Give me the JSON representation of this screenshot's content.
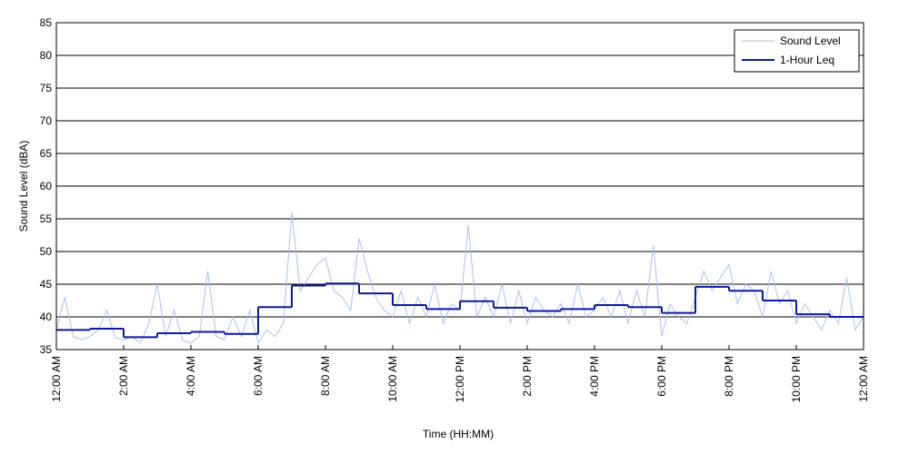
{
  "chart_data": {
    "type": "line",
    "xlabel": "Time (HH:MM)",
    "ylabel": "Sound Level (dBA)",
    "xlim": [
      0,
      24
    ],
    "ylim": [
      35,
      85
    ],
    "xticks": [
      {
        "value": 0,
        "label": "12:00 AM"
      },
      {
        "value": 2,
        "label": "2:00 AM"
      },
      {
        "value": 4,
        "label": "4:00 AM"
      },
      {
        "value": 6,
        "label": "6:00 AM"
      },
      {
        "value": 8,
        "label": "8:00 AM"
      },
      {
        "value": 10,
        "label": "10:00 AM"
      },
      {
        "value": 12,
        "label": "12:00 PM"
      },
      {
        "value": 14,
        "label": "2:00 PM"
      },
      {
        "value": 16,
        "label": "4:00 PM"
      },
      {
        "value": 18,
        "label": "6:00 PM"
      },
      {
        "value": 20,
        "label": "8:00 PM"
      },
      {
        "value": 22,
        "label": "10:00 PM"
      },
      {
        "value": 24,
        "label": "12:00 AM"
      }
    ],
    "yticks": [
      35,
      40,
      45,
      50,
      55,
      60,
      65,
      70,
      75,
      80,
      85
    ],
    "grid": true,
    "legend": "upper right",
    "series": [
      {
        "name": "Sound Level",
        "color": "#a9c0f0",
        "style": "line",
        "x": [
          0,
          0.25,
          0.5,
          0.75,
          1,
          1.25,
          1.5,
          1.75,
          2,
          2.25,
          2.5,
          2.75,
          3,
          3.25,
          3.5,
          3.75,
          4,
          4.25,
          4.5,
          4.75,
          5,
          5.25,
          5.5,
          5.75,
          6,
          6.25,
          6.5,
          6.75,
          7,
          7.25,
          7.5,
          7.75,
          8,
          8.25,
          8.5,
          8.75,
          9,
          9.25,
          9.5,
          9.75,
          10,
          10.25,
          10.5,
          10.75,
          11,
          11.25,
          11.5,
          11.75,
          12,
          12.25,
          12.5,
          12.75,
          13,
          13.25,
          13.5,
          13.75,
          14,
          14.25,
          14.5,
          14.75,
          15,
          15.25,
          15.5,
          15.75,
          16,
          16.25,
          16.5,
          16.75,
          17,
          17.25,
          17.5,
          17.75,
          18,
          18.25,
          18.5,
          18.75,
          19,
          19.25,
          19.5,
          19.75,
          20,
          20.25,
          20.5,
          20.75,
          21,
          21.25,
          21.5,
          21.75,
          22,
          22.25,
          22.5,
          22.75,
          23,
          23.25,
          23.5,
          23.75,
          24
        ],
        "values": [
          38,
          43,
          37,
          36.5,
          37,
          38,
          41,
          36.8,
          36.5,
          37,
          36,
          39,
          45,
          37,
          41,
          36.5,
          36,
          37,
          47,
          37,
          36.5,
          40,
          37,
          41,
          36,
          38,
          37,
          39,
          56,
          44,
          46,
          48,
          49,
          44,
          43,
          41,
          52,
          47,
          43,
          41,
          40,
          44,
          39,
          43,
          40,
          45,
          39,
          42,
          41,
          54,
          40,
          43,
          40,
          45,
          39,
          44,
          39,
          43,
          41,
          40,
          42,
          39,
          45,
          40,
          41,
          43,
          40,
          44,
          39,
          44,
          40,
          51,
          37,
          42,
          40,
          39,
          43,
          47,
          44,
          46,
          48,
          42,
          45,
          44,
          40,
          47,
          42,
          44,
          39,
          42,
          40,
          38,
          41,
          39,
          46,
          38,
          40
        ]
      },
      {
        "name": "1-Hour Leq",
        "color": "#0a1aa0",
        "style": "steps",
        "x": [
          0,
          1,
          2,
          3,
          4,
          5,
          6,
          7,
          8,
          9,
          10,
          11,
          12,
          13,
          14,
          15,
          16,
          17,
          18,
          19,
          20,
          21,
          22,
          23
        ],
        "values": [
          38.0,
          38.2,
          36.9,
          37.5,
          37.7,
          37.4,
          41.5,
          44.8,
          45.1,
          43.6,
          41.8,
          41.2,
          42.4,
          41.4,
          40.9,
          41.2,
          41.8,
          41.5,
          40.6,
          44.6,
          44.0,
          42.5,
          40.4,
          40.0
        ]
      }
    ]
  }
}
